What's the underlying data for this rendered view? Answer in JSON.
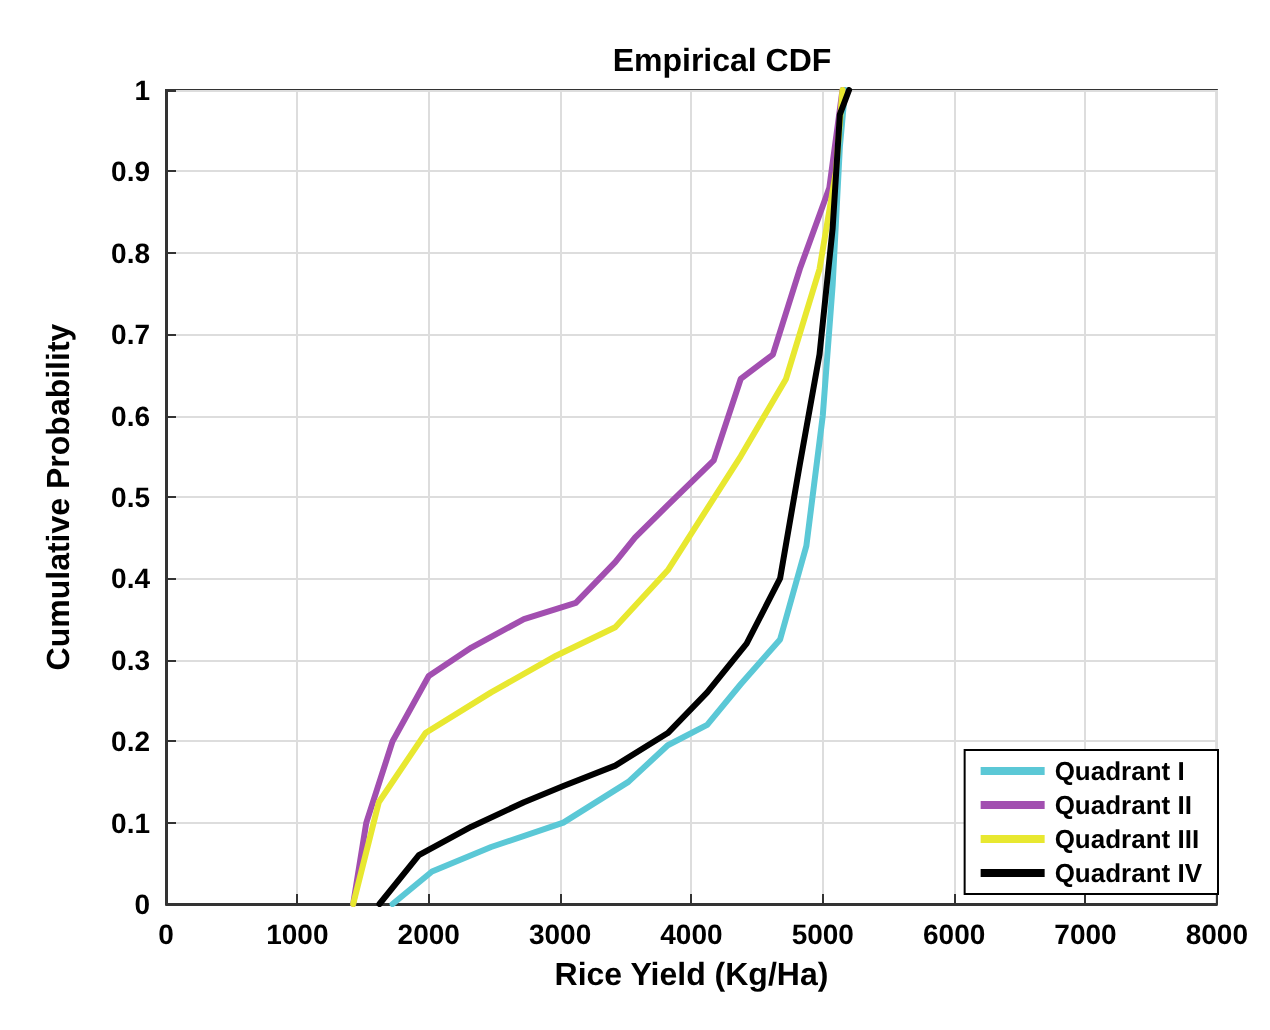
{
  "chart_data": {
    "type": "line",
    "title": "Empirical CDF",
    "xlabel": "Rice Yield (Kg/Ha)",
    "ylabel": "Cumulative Probability",
    "xlim": [
      0,
      8000
    ],
    "xticks": [
      0,
      1000,
      2000,
      3000,
      4000,
      5000,
      6000,
      7000,
      8000
    ],
    "ylim": [
      0,
      1
    ],
    "yticks": [
      0,
      0.1,
      0.2,
      0.3,
      0.4,
      0.5,
      0.6,
      0.7,
      0.8,
      0.9,
      1
    ],
    "grid": true,
    "legend": "bottom right",
    "marker": "none",
    "line_style": "solid",
    "series": [
      {
        "name": "Quadrant I",
        "color": "#5bc8d6",
        "x": [
          1725,
          2025,
          2475,
          3025,
          3520,
          3820,
          4120,
          4375,
          4675,
          4875,
          5000,
          5075,
          5130,
          5170
        ],
        "values": [
          0,
          0.04,
          0.07,
          0.1,
          0.15,
          0.195,
          0.22,
          0.27,
          0.325,
          0.44,
          0.6,
          0.76,
          0.93,
          1
        ]
      },
      {
        "name": "Quadrant II",
        "color": "#a24fb0",
        "x": [
          1425,
          1525,
          1725,
          2000,
          2325,
          2725,
          3120,
          3420,
          3570,
          3820,
          4170,
          4375,
          4620,
          4825,
          5050,
          5150
        ],
        "values": [
          0,
          0.1,
          0.2,
          0.28,
          0.315,
          0.35,
          0.37,
          0.42,
          0.45,
          0.49,
          0.545,
          0.645,
          0.675,
          0.78,
          0.88,
          1
        ]
      },
      {
        "name": "Quadrant III",
        "color": "#e8e830",
        "x": [
          1425,
          1620,
          1975,
          2475,
          2970,
          3420,
          3820,
          4375,
          4720,
          4975,
          5100,
          5150
        ],
        "values": [
          0,
          0.125,
          0.21,
          0.26,
          0.305,
          0.34,
          0.41,
          0.55,
          0.645,
          0.78,
          0.9,
          1
        ]
      },
      {
        "name": "Quadrant IV",
        "color": "#000000",
        "x": [
          1625,
          1925,
          2325,
          2725,
          3025,
          3420,
          3820,
          4120,
          4420,
          4675,
          4825,
          4975,
          5075,
          5130,
          5200
        ],
        "values": [
          0,
          0.06,
          0.095,
          0.125,
          0.145,
          0.17,
          0.21,
          0.26,
          0.32,
          0.4,
          0.54,
          0.675,
          0.83,
          0.97,
          1
        ]
      }
    ]
  }
}
